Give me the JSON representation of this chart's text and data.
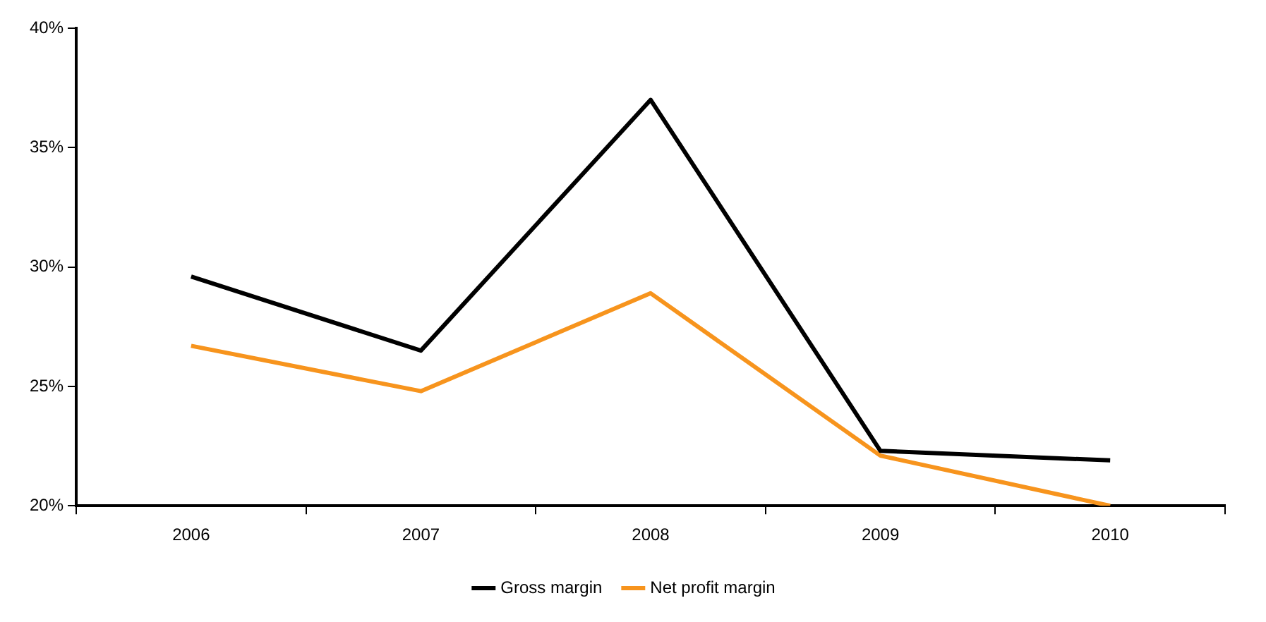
{
  "chart_data": {
    "type": "line",
    "categories": [
      "2006",
      "2007",
      "2008",
      "2009",
      "2010"
    ],
    "series": [
      {
        "name": "Gross margin",
        "color": "#000000",
        "values": [
          29.6,
          26.5,
          37.0,
          22.3,
          21.9
        ]
      },
      {
        "name": "Net profit margin",
        "color": "#f7941d",
        "values": [
          26.7,
          24.8,
          28.9,
          22.1,
          20.0
        ]
      }
    ],
    "ylim": [
      20,
      40
    ],
    "yticks": [
      {
        "value": 20,
        "label": "20%"
      },
      {
        "value": 25,
        "label": "25%"
      },
      {
        "value": 30,
        "label": "30%"
      },
      {
        "value": 35,
        "label": "35%"
      },
      {
        "value": 40,
        "label": "40%"
      }
    ],
    "grid": false,
    "legend": "bottom",
    "marker": "none",
    "line_style": "solid"
  }
}
